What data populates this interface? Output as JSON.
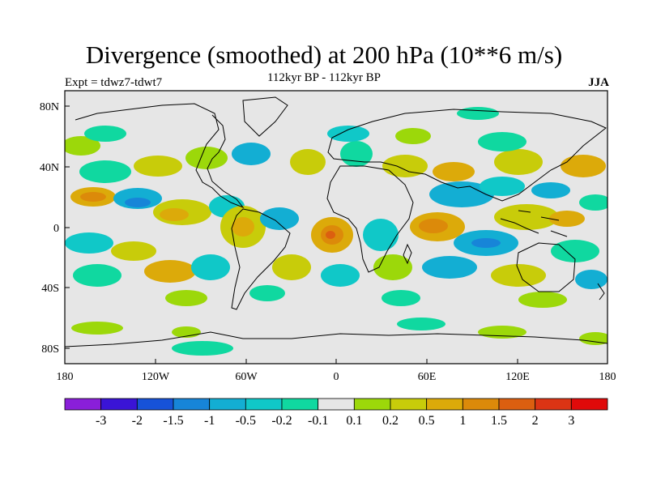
{
  "title": "Divergence (smoothed) at 200 hPa (10**6 m/s)",
  "subtitle": "112kyr BP - 112kyr BP",
  "experiment": "Expt = tdwz7-tdwt7",
  "season": "JJA",
  "y_axis": {
    "ticks": [
      "80N",
      "40N",
      "0",
      "40S",
      "80S"
    ],
    "lat_values": [
      80,
      40,
      0,
      -40,
      -80
    ]
  },
  "x_axis": {
    "ticks": [
      "180",
      "120W",
      "60W",
      "0",
      "60E",
      "120E",
      "180"
    ],
    "lon_values": [
      -180,
      -120,
      -60,
      0,
      60,
      120,
      180
    ]
  },
  "map_extent": {
    "lon": [
      -180,
      180
    ],
    "lat": [
      -90,
      90
    ]
  },
  "colorbar": {
    "labels": [
      "-3",
      "-2",
      "-1.5",
      "-1",
      "-0.5",
      "-0.2",
      "-0.1",
      "0.1",
      "0.2",
      "0.5",
      "1",
      "1.5",
      "2",
      "3"
    ],
    "colors": [
      "#8a1fd9",
      "#3a14d6",
      "#1652d8",
      "#1785d8",
      "#13aed3",
      "#10c8c8",
      "#10d8a0",
      "#e6e6e6",
      "#9cd80a",
      "#c8cc0a",
      "#dcaa0a",
      "#dc8a0a",
      "#dc5f10",
      "#dc3414",
      "#e00a0a"
    ]
  },
  "colors": {
    "background": "#e6e6e6",
    "coast": "#000000"
  }
}
